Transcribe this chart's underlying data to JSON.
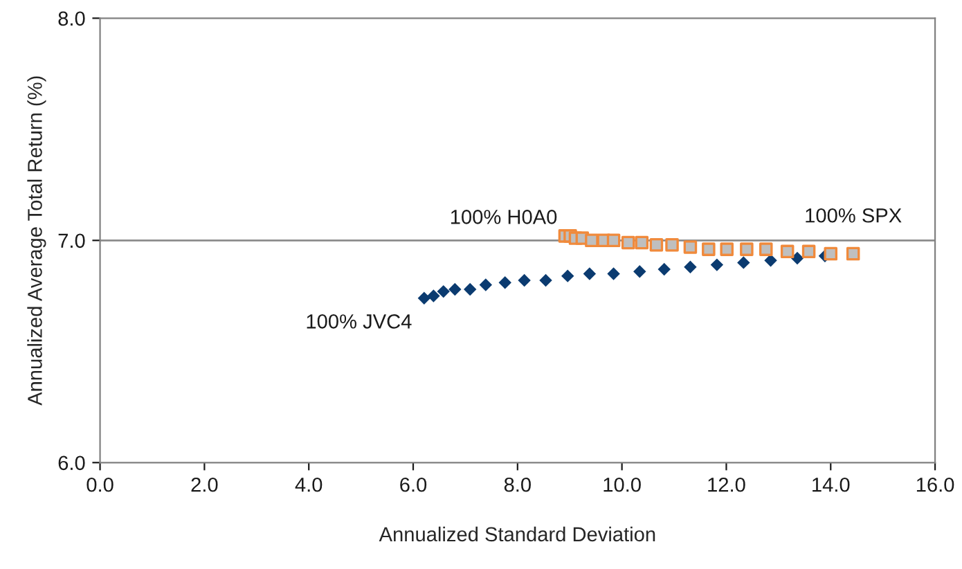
{
  "chart_data": {
    "type": "scatter",
    "xlabel": "Annualized Standard Deviation",
    "ylabel": "Annualized Average Total Return (%)",
    "xlim": [
      0,
      16
    ],
    "xticks": [
      {
        "value": 0,
        "label": "0.0"
      },
      {
        "value": 2,
        "label": "2.0"
      },
      {
        "value": 4,
        "label": "4.0"
      },
      {
        "value": 6,
        "label": "6.0"
      },
      {
        "value": 8,
        "label": "8.0"
      },
      {
        "value": 10,
        "label": "10.0"
      },
      {
        "value": 12,
        "label": "12.0"
      },
      {
        "value": 14,
        "label": "14.0"
      },
      {
        "value": 16,
        "label": "16.0"
      }
    ],
    "ylim": [
      6,
      8
    ],
    "yticks": [
      {
        "value": 6,
        "label": "6.0"
      },
      {
        "value": 7,
        "label": "7.0"
      },
      {
        "value": 8,
        "label": "8.0"
      }
    ],
    "grid": false,
    "legend": false,
    "ref_lines": [
      {
        "axis": "y",
        "value": 7,
        "color": "#8c8c8c"
      }
    ],
    "series": [
      {
        "color": "#0b3b70",
        "marker": "diamond",
        "x": [
          6.21,
          6.39,
          6.58,
          6.8,
          7.09,
          7.39,
          7.76,
          8.13,
          8.54,
          8.96,
          9.38,
          9.84,
          10.34,
          10.81,
          11.31,
          11.82,
          12.33,
          12.85,
          13.36,
          13.89
        ],
        "values": [
          6.74,
          6.75,
          6.77,
          6.78,
          6.78,
          6.8,
          6.81,
          6.82,
          6.82,
          6.84,
          6.85,
          6.85,
          6.86,
          6.87,
          6.88,
          6.89,
          6.9,
          6.91,
          6.92,
          6.93
        ]
      },
      {
        "color": "#f08a3c",
        "marker": "square",
        "x": [
          8.91,
          9.01,
          9.11,
          9.24,
          9.42,
          9.65,
          9.84,
          10.12,
          10.38,
          10.66,
          10.96,
          11.31,
          11.66,
          12.01,
          12.39,
          12.76,
          13.17,
          13.58,
          14.0,
          14.43
        ],
        "values": [
          7.02,
          7.02,
          7.01,
          7.01,
          7.0,
          7.0,
          7.0,
          6.99,
          6.99,
          6.98,
          6.98,
          6.97,
          6.96,
          6.96,
          6.96,
          6.96,
          6.95,
          6.95,
          6.94,
          6.94
        ]
      }
    ],
    "annotations": [
      {
        "text": "100% H0A0",
        "x": 8.91,
        "y": 7.02
      },
      {
        "text": "100% JVC4",
        "x": 6.21,
        "y": 6.74
      },
      {
        "text": "100% SPX",
        "x": 14.43,
        "y": 6.94
      }
    ]
  }
}
